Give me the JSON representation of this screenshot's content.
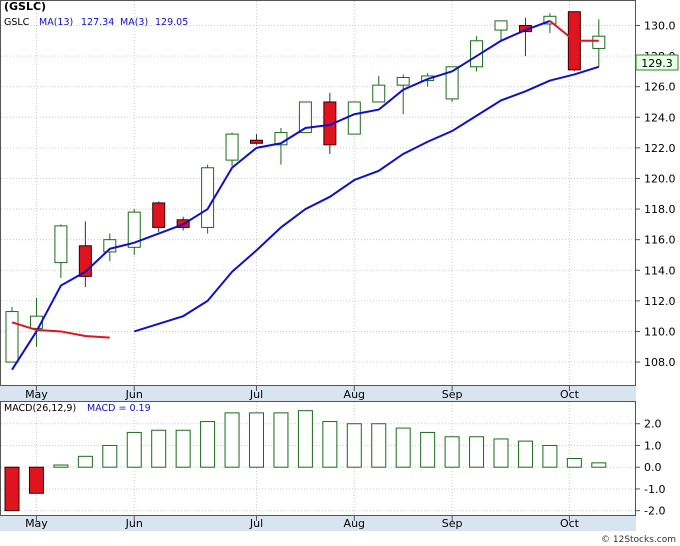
{
  "chart_data": {
    "type": "candlestick",
    "ticker": "(GSLC)",
    "x_month_labels": [
      "May",
      "Jun",
      "Jul",
      "Aug",
      "Sep",
      "Oct"
    ],
    "price_panel": {
      "ylim": [
        106.5,
        131.6
      ],
      "y_ticks": [
        108.0,
        110.0,
        112.0,
        114.0,
        116.0,
        118.0,
        120.0,
        122.0,
        124.0,
        126.0,
        128.0,
        130.0
      ],
      "last_price_label": "129.3",
      "legend": {
        "symbol": "GSLC",
        "ma13_label": "MA(13)",
        "ma13_value": "127.34",
        "ma3_label": "MA(3)",
        "ma3_value": "129.05"
      },
      "candles": [
        {
          "open": 108.0,
          "high": 111.6,
          "low": 108.0,
          "close": 111.3,
          "up": true
        },
        {
          "open": 110.2,
          "high": 112.2,
          "low": 109.0,
          "close": 111.0,
          "up": true
        },
        {
          "open": 114.5,
          "high": 117.0,
          "low": 113.5,
          "close": 116.9,
          "up": true
        },
        {
          "open": 115.6,
          "high": 117.2,
          "low": 112.9,
          "close": 113.6,
          "up": false
        },
        {
          "open": 115.2,
          "high": 116.4,
          "low": 114.6,
          "close": 116.0,
          "up": true
        },
        {
          "open": 115.5,
          "high": 118.0,
          "low": 115.0,
          "close": 117.8,
          "up": true
        },
        {
          "open": 118.4,
          "high": 118.5,
          "low": 116.5,
          "close": 116.8,
          "up": false
        },
        {
          "open": 117.3,
          "high": 117.5,
          "low": 116.6,
          "close": 116.8,
          "up": false
        },
        {
          "open": 116.8,
          "high": 120.9,
          "low": 116.4,
          "close": 120.7,
          "up": true
        },
        {
          "open": 121.2,
          "high": 123.0,
          "low": 120.8,
          "close": 122.9,
          "up": true
        },
        {
          "open": 122.5,
          "high": 122.9,
          "low": 122.2,
          "close": 122.3,
          "up": false
        },
        {
          "open": 122.2,
          "high": 123.3,
          "low": 120.9,
          "close": 123.0,
          "up": true
        },
        {
          "open": 123.0,
          "high": 125.0,
          "low": 123.0,
          "close": 125.0,
          "up": true
        },
        {
          "open": 125.0,
          "high": 125.6,
          "low": 121.6,
          "close": 122.2,
          "up": false
        },
        {
          "open": 122.9,
          "high": 125.0,
          "low": 122.9,
          "close": 125.0,
          "up": true
        },
        {
          "open": 125.0,
          "high": 126.7,
          "low": 125.0,
          "close": 126.1,
          "up": true
        },
        {
          "open": 126.1,
          "high": 126.8,
          "low": 124.2,
          "close": 126.6,
          "up": true
        },
        {
          "open": 126.4,
          "high": 126.9,
          "low": 126.0,
          "close": 126.7,
          "up": true
        },
        {
          "open": 125.2,
          "high": 127.2,
          "low": 125.0,
          "close": 127.3,
          "up": true
        },
        {
          "open": 127.3,
          "high": 129.3,
          "low": 127.0,
          "close": 129.0,
          "up": true
        },
        {
          "open": 129.7,
          "high": 130.3,
          "low": 129.0,
          "close": 130.3,
          "up": true
        },
        {
          "open": 130.0,
          "high": 130.5,
          "low": 128.0,
          "close": 129.6,
          "up": false
        },
        {
          "open": 130.1,
          "high": 130.8,
          "low": 129.5,
          "close": 130.6,
          "up": true
        },
        {
          "open": 130.9,
          "high": 130.9,
          "low": 127.0,
          "close": 127.1,
          "up": false
        },
        {
          "open": 128.5,
          "high": 130.4,
          "low": 127.3,
          "close": 129.3,
          "up": true
        }
      ],
      "ma13": [
        107.5,
        110.6,
        113.0,
        113.9,
        115.4,
        115.8,
        116.4,
        117.0,
        118.0,
        120.7,
        122.0,
        122.3,
        123.3,
        123.5,
        124.2,
        124.5,
        125.8,
        126.5,
        127.0,
        128.0,
        129.0,
        129.7,
        130.3,
        null,
        null
      ],
      "ma3": [
        null,
        null,
        null,
        null,
        null,
        null,
        null,
        null,
        null,
        null,
        null,
        null,
        null,
        null,
        null,
        null,
        null,
        null,
        null,
        null,
        null,
        null,
        null,
        null,
        null
      ],
      "ma_long": [
        107.5,
        110.0,
        113.0,
        113.9,
        115.4,
        115.8,
        116.4,
        117.0,
        118.0,
        120.7,
        122.0,
        122.3,
        123.3,
        123.5,
        124.2,
        124.5,
        125.8,
        126.5,
        127.0,
        128.0,
        129.0,
        129.7,
        130.3,
        null,
        null
      ],
      "ma_blue_long": [
        null,
        null,
        null,
        null,
        null,
        110.0,
        110.5,
        111.0,
        112.0,
        113.9,
        115.3,
        116.8,
        118.0,
        118.8,
        119.9,
        120.5,
        121.6,
        122.4,
        123.1,
        124.1,
        125.1,
        125.7,
        126.4,
        126.8,
        127.3
      ],
      "ma_red_short": [
        110.6,
        110.1,
        110.0,
        109.7,
        109.6
      ],
      "ma_blue_short": [
        107.5,
        110.0,
        113.0,
        113.9,
        115.4,
        115.8,
        116.4,
        117.0,
        118.0,
        120.7,
        122.0,
        122.3,
        123.3,
        123.5,
        124.2,
        124.5,
        125.8,
        126.5,
        127.0,
        128.0,
        129.0,
        129.7,
        130.3
      ],
      "ma_red_tail": [
        130.3,
        129.0,
        129.0
      ]
    },
    "macd_panel": {
      "label": "MACD(26,12,9)",
      "value_label": "MACD = 0.19",
      "ylim": [
        -2.2,
        3.0
      ],
      "y_ticks": [
        -2.0,
        -1.0,
        0.0,
        1.0,
        2.0
      ],
      "bars": [
        -2.0,
        -1.2,
        0.1,
        0.5,
        1.0,
        1.6,
        1.7,
        1.7,
        2.1,
        2.5,
        2.5,
        2.5,
        2.6,
        2.1,
        2.0,
        2.0,
        1.8,
        1.6,
        1.4,
        1.4,
        1.3,
        1.2,
        1.0,
        0.4,
        0.2
      ]
    },
    "watermark": "© 12Stocks.com"
  }
}
